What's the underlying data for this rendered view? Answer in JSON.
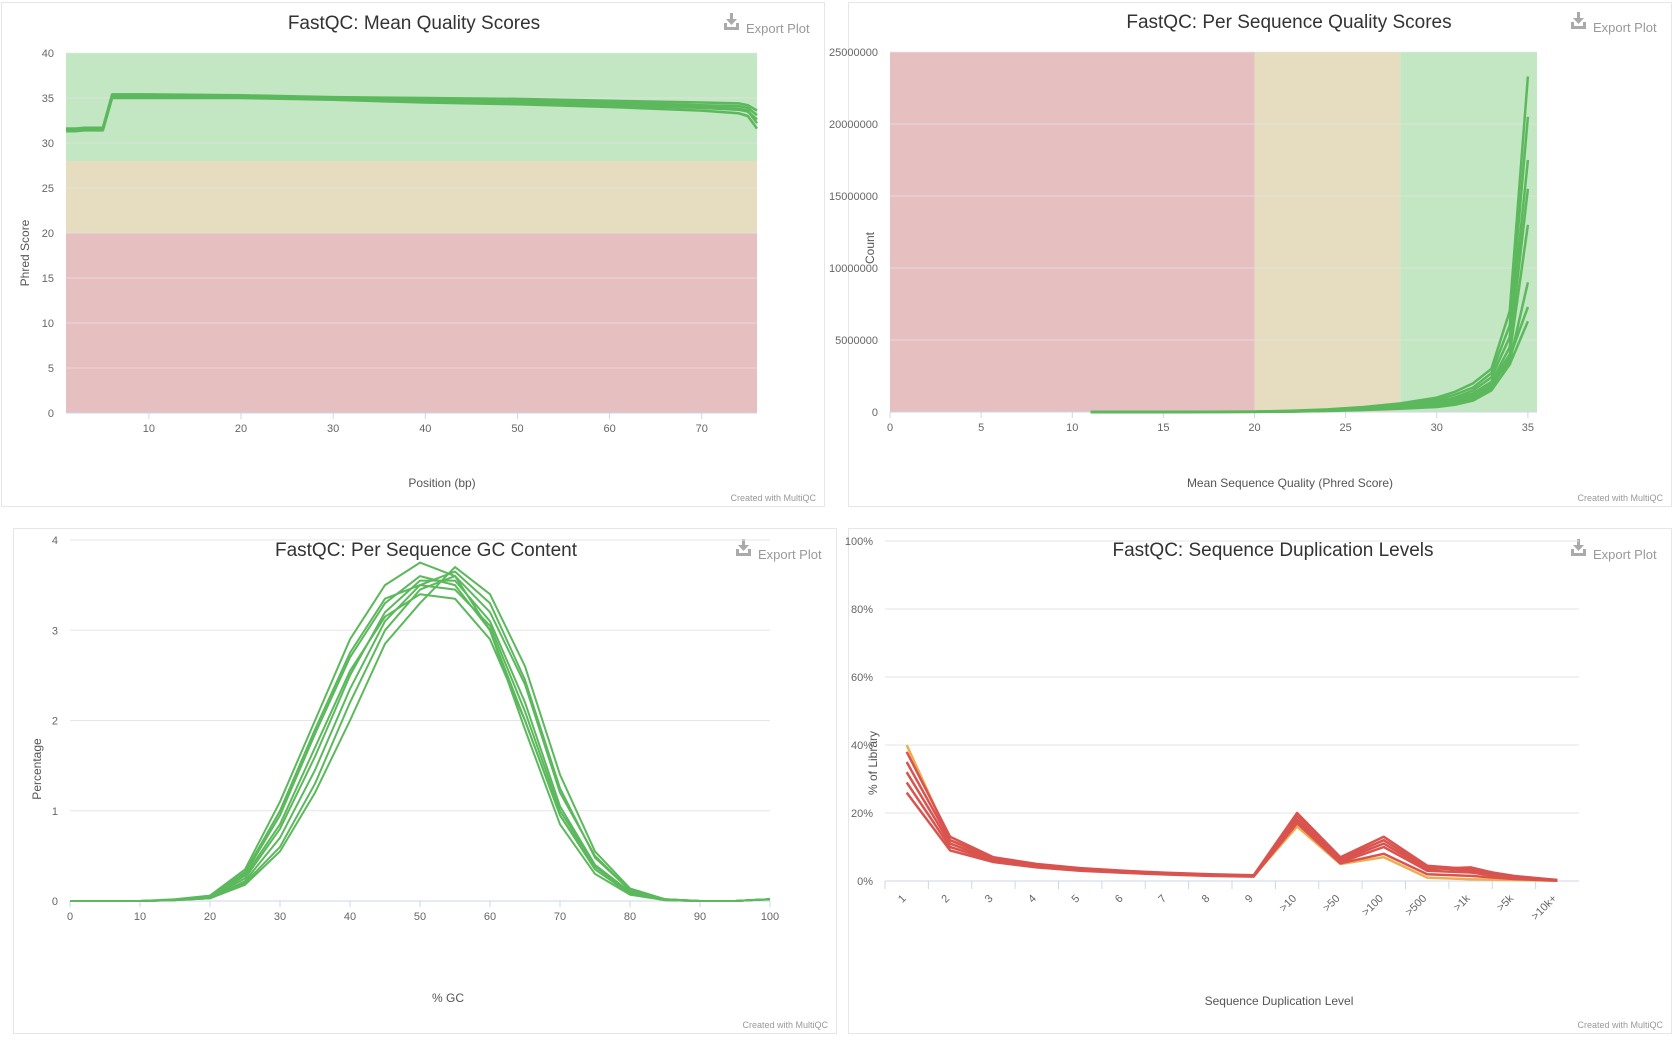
{
  "export_label": "Export Plot",
  "credit": "Created with MultiQC",
  "chart_data": [
    {
      "id": "mean_quality",
      "type": "line",
      "title": "FastQC: Mean Quality Scores",
      "xlabel": "Position (bp)",
      "ylabel": "Phred Score",
      "xlim": [
        1,
        76
      ],
      "ylim": [
        0,
        40
      ],
      "xticks": [
        10,
        20,
        30,
        40,
        50,
        60,
        70
      ],
      "yticks": [
        0,
        5,
        10,
        15,
        20,
        25,
        30,
        35,
        40
      ],
      "bands": [
        {
          "from": 0,
          "to": 20,
          "color": "#e6c0c0"
        },
        {
          "from": 20,
          "to": 28,
          "color": "#e6dcc0"
        },
        {
          "from": 28,
          "to": 40,
          "color": "#c3e6c3"
        }
      ],
      "line_color": "#5cb85c",
      "series": [
        {
          "x": [
            1,
            2,
            3,
            4,
            5,
            6,
            10,
            20,
            30,
            40,
            50,
            60,
            70,
            74,
            75,
            76
          ],
          "y": [
            31.6,
            31.6,
            31.7,
            31.7,
            31.7,
            35.4,
            35.4,
            35.3,
            35.1,
            35.0,
            34.9,
            34.7,
            34.5,
            34.4,
            34.2,
            33.6
          ]
        },
        {
          "x": [
            1,
            2,
            3,
            4,
            5,
            6,
            10,
            20,
            30,
            40,
            50,
            60,
            70,
            74,
            75,
            76
          ],
          "y": [
            31.5,
            31.5,
            31.6,
            31.6,
            31.6,
            35.3,
            35.3,
            35.2,
            35.0,
            34.9,
            34.7,
            34.5,
            34.2,
            34.1,
            33.9,
            33.1
          ]
        },
        {
          "x": [
            1,
            2,
            3,
            4,
            5,
            6,
            10,
            20,
            30,
            40,
            50,
            60,
            70,
            74,
            75,
            76
          ],
          "y": [
            31.4,
            31.4,
            31.5,
            31.5,
            31.5,
            35.1,
            35.2,
            35.1,
            34.9,
            34.7,
            34.5,
            34.2,
            33.9,
            33.7,
            33.5,
            32.6
          ]
        },
        {
          "x": [
            1,
            2,
            3,
            4,
            5,
            6,
            10,
            20,
            30,
            40,
            50,
            60,
            70,
            74,
            75,
            76
          ],
          "y": [
            31.3,
            31.3,
            31.4,
            31.4,
            31.4,
            35.0,
            35.0,
            35.0,
            34.8,
            34.5,
            34.3,
            34.0,
            33.6,
            33.3,
            33.0,
            31.6
          ]
        },
        {
          "x": [
            1,
            2,
            3,
            4,
            5,
            6,
            10,
            20,
            30,
            40,
            50,
            60,
            70,
            74,
            75,
            76
          ],
          "y": [
            31.6,
            31.6,
            31.6,
            31.6,
            31.7,
            35.2,
            35.3,
            35.2,
            35.0,
            34.8,
            34.6,
            34.4,
            34.0,
            33.8,
            33.6,
            32.2
          ]
        }
      ]
    },
    {
      "id": "per_seq_quality",
      "type": "line",
      "title": "FastQC: Per Sequence Quality Scores",
      "xlabel": "Mean Sequence Quality (Phred Score)",
      "ylabel": "Count",
      "xlim": [
        0,
        35.5
      ],
      "ylim": [
        0,
        25000000
      ],
      "xticks": [
        0,
        5,
        10,
        15,
        20,
        25,
        30,
        35
      ],
      "yticks": [
        0,
        5000000,
        10000000,
        15000000,
        20000000,
        25000000
      ],
      "bands": [
        {
          "from": 0,
          "to": 20,
          "color": "#e6c0c0"
        },
        {
          "from": 20,
          "to": 28,
          "color": "#e6dcc0"
        },
        {
          "from": 28,
          "to": 35.5,
          "color": "#c3e6c3"
        }
      ],
      "line_color": "#5cb85c",
      "series": [
        {
          "x": [
            11,
            15,
            20,
            22,
            24,
            26,
            28,
            30,
            31,
            32,
            33,
            34,
            35
          ],
          "y": [
            0,
            5000,
            30000,
            80000,
            180000,
            350000,
            600000,
            1000000,
            1400000,
            2000000,
            3000000,
            7000000,
            23300000
          ]
        },
        {
          "x": [
            11,
            15,
            20,
            22,
            24,
            26,
            28,
            30,
            31,
            32,
            33,
            34,
            35
          ],
          "y": [
            0,
            4000,
            25000,
            70000,
            150000,
            300000,
            500000,
            850000,
            1200000,
            1700000,
            2700000,
            6000000,
            20500000
          ]
        },
        {
          "x": [
            11,
            15,
            20,
            22,
            24,
            26,
            28,
            30,
            31,
            32,
            33,
            34,
            35
          ],
          "y": [
            0,
            3000,
            20000,
            60000,
            130000,
            250000,
            420000,
            700000,
            1000000,
            1500000,
            2400000,
            5200000,
            17500000
          ]
        },
        {
          "x": [
            11,
            15,
            20,
            22,
            24,
            26,
            28,
            30,
            31,
            32,
            33,
            34,
            35
          ],
          "y": [
            0,
            3000,
            18000,
            50000,
            110000,
            220000,
            380000,
            620000,
            900000,
            1300000,
            2100000,
            4500000,
            15500000
          ]
        },
        {
          "x": [
            11,
            15,
            20,
            22,
            24,
            26,
            28,
            30,
            31,
            32,
            33,
            34,
            35
          ],
          "y": [
            0,
            2500,
            15000,
            45000,
            100000,
            200000,
            340000,
            560000,
            800000,
            1200000,
            2000000,
            4000000,
            13000000
          ]
        },
        {
          "x": [
            11,
            15,
            20,
            22,
            24,
            26,
            28,
            30,
            31,
            32,
            33,
            34,
            35
          ],
          "y": [
            0,
            2000,
            12000,
            40000,
            90000,
            180000,
            300000,
            500000,
            700000,
            1100000,
            1900000,
            3500000,
            9000000
          ]
        },
        {
          "x": [
            11,
            15,
            20,
            22,
            24,
            26,
            28,
            30,
            31,
            32,
            33,
            34,
            35
          ],
          "y": [
            0,
            2000,
            10000,
            35000,
            80000,
            160000,
            260000,
            420000,
            600000,
            950000,
            1700000,
            3800000,
            7300000
          ]
        },
        {
          "x": [
            11,
            15,
            20,
            22,
            24,
            26,
            28,
            30,
            31,
            32,
            33,
            34,
            35
          ],
          "y": [
            0,
            1500,
            8000,
            30000,
            70000,
            140000,
            220000,
            350000,
            500000,
            800000,
            1500000,
            3300000,
            6300000
          ]
        }
      ]
    },
    {
      "id": "gc_content",
      "type": "line",
      "title": "FastQC: Per Sequence GC Content",
      "xlabel": "% GC",
      "ylabel": "Percentage",
      "xlim": [
        0,
        100
      ],
      "ylim": [
        0,
        4
      ],
      "xticks": [
        0,
        10,
        20,
        30,
        40,
        50,
        60,
        70,
        80,
        90,
        100
      ],
      "yticks": [
        0,
        1,
        2,
        3,
        4
      ],
      "line_color": "#5cb85c",
      "series": [
        {
          "x": [
            0,
            10,
            15,
            20,
            25,
            30,
            35,
            40,
            45,
            50,
            55,
            60,
            65,
            70,
            75,
            80,
            85,
            90,
            95,
            100
          ],
          "y": [
            0,
            0,
            0.01,
            0.05,
            0.3,
            0.95,
            1.85,
            2.7,
            3.3,
            3.6,
            3.5,
            3.0,
            2.0,
            0.95,
            0.35,
            0.08,
            0.01,
            0,
            0,
            0.02
          ]
        },
        {
          "x": [
            0,
            10,
            15,
            20,
            25,
            30,
            35,
            40,
            45,
            50,
            55,
            60,
            65,
            70,
            75,
            80,
            85,
            90,
            95,
            100
          ],
          "y": [
            0,
            0,
            0.01,
            0.04,
            0.25,
            0.8,
            1.6,
            2.5,
            3.2,
            3.55,
            3.55,
            3.1,
            2.2,
            1.05,
            0.4,
            0.1,
            0.01,
            0,
            0,
            0.02
          ]
        },
        {
          "x": [
            0,
            10,
            15,
            20,
            25,
            30,
            35,
            40,
            45,
            50,
            55,
            60,
            65,
            70,
            75,
            80,
            85,
            90,
            95,
            100
          ],
          "y": [
            0,
            0,
            0.01,
            0.03,
            0.2,
            0.6,
            1.3,
            2.2,
            3.0,
            3.45,
            3.6,
            3.2,
            2.4,
            1.2,
            0.5,
            0.12,
            0.02,
            0,
            0,
            0.02
          ]
        },
        {
          "x": [
            0,
            10,
            15,
            20,
            25,
            30,
            35,
            40,
            45,
            50,
            55,
            60,
            65,
            70,
            75,
            80,
            85,
            90,
            95,
            100
          ],
          "y": [
            0,
            0,
            0.02,
            0.06,
            0.35,
            1.1,
            2.0,
            2.9,
            3.5,
            3.75,
            3.6,
            3.0,
            1.9,
            0.85,
            0.3,
            0.07,
            0.01,
            0,
            0,
            0.02
          ]
        },
        {
          "x": [
            0,
            10,
            15,
            20,
            25,
            30,
            35,
            40,
            45,
            50,
            55,
            60,
            65,
            70,
            75,
            80,
            85,
            90,
            95,
            100
          ],
          "y": [
            0,
            0,
            0.01,
            0.03,
            0.18,
            0.55,
            1.2,
            2.0,
            2.85,
            3.3,
            3.7,
            3.4,
            2.6,
            1.4,
            0.55,
            0.14,
            0.02,
            0,
            0,
            0.02
          ]
        },
        {
          "x": [
            0,
            10,
            15,
            20,
            25,
            30,
            35,
            40,
            45,
            50,
            55,
            60,
            65,
            70,
            75,
            80,
            85,
            90,
            95,
            100
          ],
          "y": [
            0,
            0,
            0.01,
            0.04,
            0.28,
            0.85,
            1.7,
            2.55,
            3.15,
            3.4,
            3.35,
            2.9,
            2.0,
            0.95,
            0.38,
            0.09,
            0.01,
            0,
            0,
            0.02
          ]
        },
        {
          "x": [
            0,
            10,
            15,
            20,
            25,
            30,
            35,
            40,
            45,
            50,
            55,
            60,
            65,
            70,
            75,
            80,
            85,
            90,
            95,
            100
          ],
          "y": [
            0,
            0,
            0.01,
            0.05,
            0.32,
            1.0,
            1.9,
            2.75,
            3.35,
            3.5,
            3.45,
            3.05,
            2.1,
            1.0,
            0.4,
            0.1,
            0.02,
            0,
            0,
            0.02
          ]
        },
        {
          "x": [
            0,
            10,
            15,
            20,
            25,
            30,
            35,
            40,
            45,
            50,
            55,
            60,
            65,
            70,
            75,
            80,
            85,
            90,
            95,
            100
          ],
          "y": [
            0,
            0,
            0.01,
            0.03,
            0.22,
            0.7,
            1.45,
            2.35,
            3.1,
            3.5,
            3.65,
            3.3,
            2.45,
            1.25,
            0.48,
            0.12,
            0.02,
            0,
            0,
            0.02
          ]
        }
      ]
    },
    {
      "id": "duplication",
      "type": "line",
      "title": "FastQC: Sequence Duplication Levels",
      "xlabel": "Sequence Duplication Level",
      "ylabel": "% of Library",
      "categories": [
        "1",
        "2",
        "3",
        "4",
        "5",
        "6",
        "7",
        "8",
        "9",
        ">10",
        ">50",
        ">100",
        ">500",
        ">1k",
        ">5k",
        ">10k+"
      ],
      "ylim": [
        0,
        100
      ],
      "yticks": [
        0,
        20,
        40,
        60,
        80,
        100
      ],
      "ytick_suffix": "%",
      "line_color": "#d9534f",
      "highlight_color": "#f0ad4e",
      "series": [
        {
          "values": [
            40,
            12,
            6.5,
            4.5,
            3.4,
            2.6,
            2.1,
            1.7,
            1.5,
            16,
            5,
            7,
            1,
            0.5,
            0.3,
            0.1
          ],
          "highlight": true
        },
        {
          "values": [
            38,
            13,
            7,
            5,
            3.8,
            3,
            2.4,
            2,
            1.7,
            20,
            7,
            13,
            4.5,
            3.5,
            1.5,
            0.3
          ]
        },
        {
          "values": [
            35,
            12,
            6.8,
            4.8,
            3.6,
            2.8,
            2.2,
            1.8,
            1.6,
            19,
            6.5,
            12,
            4,
            3,
            1.2,
            0.3
          ]
        },
        {
          "values": [
            32,
            11,
            6.3,
            4.5,
            3.4,
            2.7,
            2.1,
            1.7,
            1.5,
            18,
            6,
            11,
            3.5,
            4,
            1.0,
            0.2
          ]
        },
        {
          "values": [
            29,
            10,
            6,
            4.3,
            3.2,
            2.5,
            2.0,
            1.6,
            1.4,
            17.5,
            5.5,
            10,
            3,
            2.5,
            0.8,
            0.2
          ]
        },
        {
          "values": [
            26,
            9,
            5.6,
            4,
            3,
            2.4,
            1.9,
            1.5,
            1.3,
            17,
            5.2,
            8,
            2,
            1.5,
            0.6,
            0.1
          ]
        }
      ]
    }
  ]
}
